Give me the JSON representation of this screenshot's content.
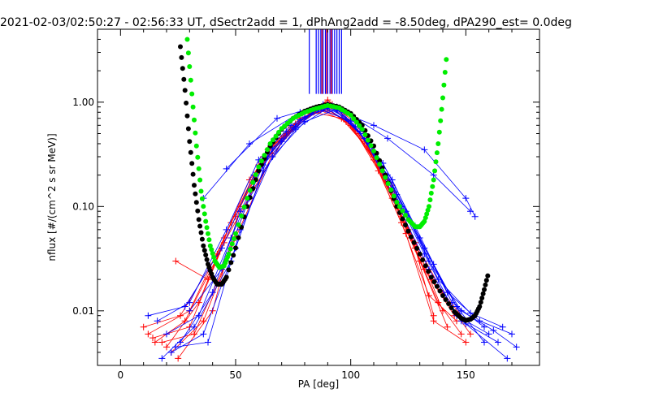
{
  "chart_data": {
    "type": "scatter",
    "title": "2021-02-03/02:50:27 - 02:56:33 UT, dSectr2add = 1, dPhAng2add = -8.50deg, dPA290_est=   0.0deg",
    "xlabel": "PA [deg]",
    "ylabel": "nflux [#/(cm^2 s sr MeV)]",
    "xlim": [
      -10,
      182
    ],
    "ylim": [
      0.003,
      5.0
    ],
    "yscale": "log",
    "grid": false,
    "xticks": [
      {
        "value": 0,
        "label": "0"
      },
      {
        "value": 50,
        "label": "50"
      },
      {
        "value": 100,
        "label": "100"
      },
      {
        "value": 150,
        "label": "150"
      }
    ],
    "yticks": [
      {
        "value": 0.01,
        "label": "0.01"
      },
      {
        "value": 0.1,
        "label": "0.10"
      },
      {
        "value": 1,
        "label": "1.00"
      }
    ],
    "colors": {
      "series_a": "#ff0000",
      "series_b": "#0000ff",
      "fit_black": "#000000",
      "fit_green": "#00ee00"
    },
    "series": [
      {
        "color": "#ff0000",
        "style": "line-plus",
        "lines": [
          [
            [
              12,
              0.006
            ],
            [
              30,
              0.01
            ],
            [
              45,
              0.05
            ],
            [
              60,
              0.25
            ],
            [
              75,
              0.55
            ],
            [
              88,
              0.92
            ],
            [
              100,
              0.6
            ],
            [
              112,
              0.25
            ],
            [
              125,
              0.06
            ],
            [
              140,
              0.015
            ],
            [
              150,
              0.008
            ]
          ],
          [
            [
              15,
              0.005
            ],
            [
              28,
              0.008
            ],
            [
              44,
              0.04
            ],
            [
              58,
              0.2
            ],
            [
              72,
              0.5
            ],
            [
              86,
              0.85
            ],
            [
              98,
              0.65
            ],
            [
              110,
              0.3
            ],
            [
              122,
              0.08
            ],
            [
              135,
              0.02
            ],
            [
              152,
              0.006
            ]
          ],
          [
            [
              20,
              0.0045
            ],
            [
              34,
              0.012
            ],
            [
              48,
              0.07
            ],
            [
              62,
              0.3
            ],
            [
              76,
              0.62
            ],
            [
              90,
              1.0
            ],
            [
              102,
              0.55
            ],
            [
              114,
              0.2
            ],
            [
              126,
              0.05
            ],
            [
              138,
              0.012
            ],
            [
              148,
              0.006
            ]
          ],
          [
            [
              10,
              0.007
            ],
            [
              26,
              0.009
            ],
            [
              42,
              0.035
            ],
            [
              56,
              0.18
            ],
            [
              70,
              0.45
            ],
            [
              84,
              0.8
            ],
            [
              96,
              0.7
            ],
            [
              108,
              0.35
            ],
            [
              120,
              0.1
            ],
            [
              132,
              0.025
            ],
            [
              145,
              0.009
            ]
          ],
          [
            [
              24,
              0.03
            ],
            [
              38,
              0.02
            ],
            [
              50,
              0.08
            ],
            [
              64,
              0.35
            ],
            [
              78,
              0.7
            ],
            [
              92,
              0.95
            ],
            [
              104,
              0.5
            ],
            [
              116,
              0.18
            ],
            [
              128,
              0.045
            ],
            [
              140,
              0.01
            ]
          ],
          [
            [
              18,
              0.005
            ],
            [
              32,
              0.006
            ],
            [
              46,
              0.03
            ],
            [
              60,
              0.22
            ],
            [
              74,
              0.58
            ],
            [
              88,
              0.9
            ],
            [
              100,
              0.62
            ],
            [
              112,
              0.22
            ],
            [
              124,
              0.055
            ],
            [
              136,
              0.008
            ],
            [
              150,
              0.005
            ]
          ],
          [
            [
              22,
              0.004
            ],
            [
              36,
              0.008
            ],
            [
              50,
              0.05
            ],
            [
              66,
              0.32
            ],
            [
              80,
              0.72
            ],
            [
              94,
              0.9
            ],
            [
              106,
              0.42
            ],
            [
              118,
              0.12
            ],
            [
              130,
              0.03
            ],
            [
              142,
              0.007
            ]
          ],
          [
            [
              14,
              0.0055
            ],
            [
              30,
              0.007
            ],
            [
              45,
              0.045
            ],
            [
              58,
              0.15
            ],
            [
              72,
              0.48
            ],
            [
              86,
              0.88
            ],
            [
              98,
              0.68
            ],
            [
              110,
              0.28
            ],
            [
              122,
              0.07
            ],
            [
              134,
              0.014
            ],
            [
              146,
              0.008
            ]
          ],
          [
            [
              25,
              0.0035
            ],
            [
              40,
              0.01
            ],
            [
              52,
              0.1
            ],
            [
              66,
              0.38
            ],
            [
              82,
              0.78
            ],
            [
              90,
              1.05
            ],
            [
              104,
              0.58
            ],
            [
              118,
              0.16
            ],
            [
              128,
              0.04
            ],
            [
              136,
              0.009
            ]
          ]
        ]
      },
      {
        "color": "#0000ff",
        "style": "line-plus",
        "lines": [
          [
            [
              16,
              0.008
            ],
            [
              30,
              0.012
            ],
            [
              46,
              0.06
            ],
            [
              60,
              0.28
            ],
            [
              74,
              0.6
            ],
            [
              88,
              0.92
            ],
            [
              102,
              0.58
            ],
            [
              116,
              0.2
            ],
            [
              130,
              0.05
            ],
            [
              144,
              0.012
            ],
            [
              158,
              0.007
            ]
          ],
          [
            [
              20,
              0.006
            ],
            [
              34,
              0.009
            ],
            [
              48,
              0.05
            ],
            [
              62,
              0.25
            ],
            [
              76,
              0.58
            ],
            [
              90,
              0.95
            ],
            [
              104,
              0.52
            ],
            [
              118,
              0.15
            ],
            [
              132,
              0.035
            ],
            [
              146,
              0.009
            ],
            [
              160,
              0.006
            ]
          ],
          [
            [
              26,
              0.005
            ],
            [
              40,
              0.015
            ],
            [
              52,
              0.09
            ],
            [
              66,
              0.36
            ],
            [
              80,
              0.72
            ],
            [
              92,
              0.9
            ],
            [
              106,
              0.45
            ],
            [
              120,
              0.11
            ],
            [
              134,
              0.025
            ],
            [
              148,
              0.008
            ],
            [
              164,
              0.005
            ]
          ],
          [
            [
              12,
              0.009
            ],
            [
              28,
              0.011
            ],
            [
              44,
              0.04
            ],
            [
              58,
              0.2
            ],
            [
              72,
              0.52
            ],
            [
              86,
              0.86
            ],
            [
              100,
              0.66
            ],
            [
              114,
              0.26
            ],
            [
              128,
              0.065
            ],
            [
              142,
              0.015
            ],
            [
              156,
              0.008
            ],
            [
              170,
              0.006
            ]
          ],
          [
            [
              46,
              0.23
            ],
            [
              68,
              0.7
            ],
            [
              88,
              0.95
            ],
            [
              110,
              0.6
            ],
            [
              132,
              0.35
            ],
            [
              150,
              0.12
            ],
            [
              154,
              0.08
            ]
          ],
          [
            [
              36,
              0.12
            ],
            [
              56,
              0.4
            ],
            [
              78,
              0.8
            ],
            [
              94,
              0.9
            ],
            [
              116,
              0.45
            ],
            [
              136,
              0.2
            ],
            [
              152,
              0.09
            ]
          ],
          [
            [
              22,
              0.004
            ],
            [
              36,
              0.006
            ],
            [
              50,
              0.04
            ],
            [
              64,
              0.3
            ],
            [
              78,
              0.68
            ],
            [
              92,
              0.92
            ],
            [
              106,
              0.5
            ],
            [
              120,
              0.13
            ],
            [
              134,
              0.03
            ],
            [
              148,
              0.01
            ],
            [
              162,
              0.0065
            ],
            [
              172,
              0.0045
            ]
          ],
          [
            [
              18,
              0.0035
            ],
            [
              32,
              0.007
            ],
            [
              48,
              0.03
            ],
            [
              62,
              0.22
            ],
            [
              76,
              0.55
            ],
            [
              90,
              0.88
            ],
            [
              104,
              0.6
            ],
            [
              118,
              0.18
            ],
            [
              132,
              0.04
            ],
            [
              146,
              0.011
            ],
            [
              158,
              0.005
            ]
          ],
          [
            [
              30,
              0.01
            ],
            [
              44,
              0.025
            ],
            [
              56,
              0.12
            ],
            [
              70,
              0.42
            ],
            [
              84,
              0.82
            ],
            [
              96,
              0.82
            ],
            [
              110,
              0.34
            ],
            [
              124,
              0.09
            ],
            [
              138,
              0.02
            ],
            [
              152,
              0.0095
            ],
            [
              166,
              0.007
            ]
          ],
          [
            [
              24,
              0.0045
            ],
            [
              38,
              0.005
            ],
            [
              52,
              0.06
            ],
            [
              66,
              0.3
            ],
            [
              80,
              0.65
            ],
            [
              94,
              0.86
            ],
            [
              108,
              0.4
            ],
            [
              122,
              0.1
            ],
            [
              136,
              0.028
            ],
            [
              150,
              0.0075
            ],
            [
              168,
              0.0035
            ]
          ]
        ]
      }
    ],
    "fits": [
      {
        "color": "#000000",
        "points": [
          [
            26,
            3.4
          ],
          [
            28,
            1.3
          ],
          [
            30,
            0.42
          ],
          [
            32,
            0.16
          ],
          [
            34,
            0.075
          ],
          [
            36,
            0.042
          ],
          [
            38,
            0.028
          ],
          [
            40,
            0.021
          ],
          [
            42,
            0.018
          ],
          [
            44,
            0.018
          ],
          [
            46,
            0.021
          ],
          [
            50,
            0.04
          ],
          [
            55,
            0.1
          ],
          [
            60,
            0.22
          ],
          [
            65,
            0.38
          ],
          [
            70,
            0.55
          ],
          [
            75,
            0.7
          ],
          [
            80,
            0.82
          ],
          [
            85,
            0.9
          ],
          [
            90,
            0.95
          ],
          [
            95,
            0.9
          ],
          [
            100,
            0.78
          ],
          [
            105,
            0.6
          ],
          [
            110,
            0.38
          ],
          [
            115,
            0.2
          ],
          [
            120,
            0.1
          ],
          [
            125,
            0.058
          ],
          [
            130,
            0.035
          ],
          [
            135,
            0.021
          ],
          [
            140,
            0.014
          ],
          [
            145,
            0.0098
          ],
          [
            148,
            0.0085
          ],
          [
            150,
            0.0081
          ],
          [
            152,
            0.0083
          ],
          [
            154,
            0.009
          ],
          [
            156,
            0.011
          ],
          [
            158,
            0.016
          ],
          [
            160,
            0.024
          ]
        ]
      },
      {
        "color": "#00ee00",
        "points": [
          [
            29,
            4.0
          ],
          [
            31,
            1.2
          ],
          [
            33,
            0.38
          ],
          [
            35,
            0.14
          ],
          [
            37,
            0.072
          ],
          [
            39,
            0.042
          ],
          [
            41,
            0.03
          ],
          [
            43,
            0.026
          ],
          [
            45,
            0.027
          ],
          [
            47,
            0.035
          ],
          [
            50,
            0.055
          ],
          [
            55,
            0.12
          ],
          [
            60,
            0.24
          ],
          [
            65,
            0.4
          ],
          [
            70,
            0.56
          ],
          [
            75,
            0.7
          ],
          [
            80,
            0.8
          ],
          [
            85,
            0.87
          ],
          [
            90,
            0.93
          ],
          [
            95,
            0.88
          ],
          [
            100,
            0.75
          ],
          [
            105,
            0.55
          ],
          [
            110,
            0.34
          ],
          [
            115,
            0.19
          ],
          [
            120,
            0.11
          ],
          [
            125,
            0.075
          ],
          [
            128,
            0.064
          ],
          [
            130,
            0.064
          ],
          [
            132,
            0.072
          ],
          [
            134,
            0.1
          ],
          [
            136,
            0.18
          ],
          [
            138,
            0.4
          ],
          [
            140,
            1.1
          ],
          [
            142,
            3.4
          ]
        ]
      }
    ],
    "top_markers": [
      {
        "color": "#0000ff",
        "x": [
          82,
          85,
          86,
          87,
          88,
          89,
          90,
          91,
          92,
          93,
          94,
          95,
          96
        ]
      },
      {
        "color": "#ff0000",
        "x": [
          87.5,
          89.5,
          91.5
        ]
      }
    ]
  }
}
